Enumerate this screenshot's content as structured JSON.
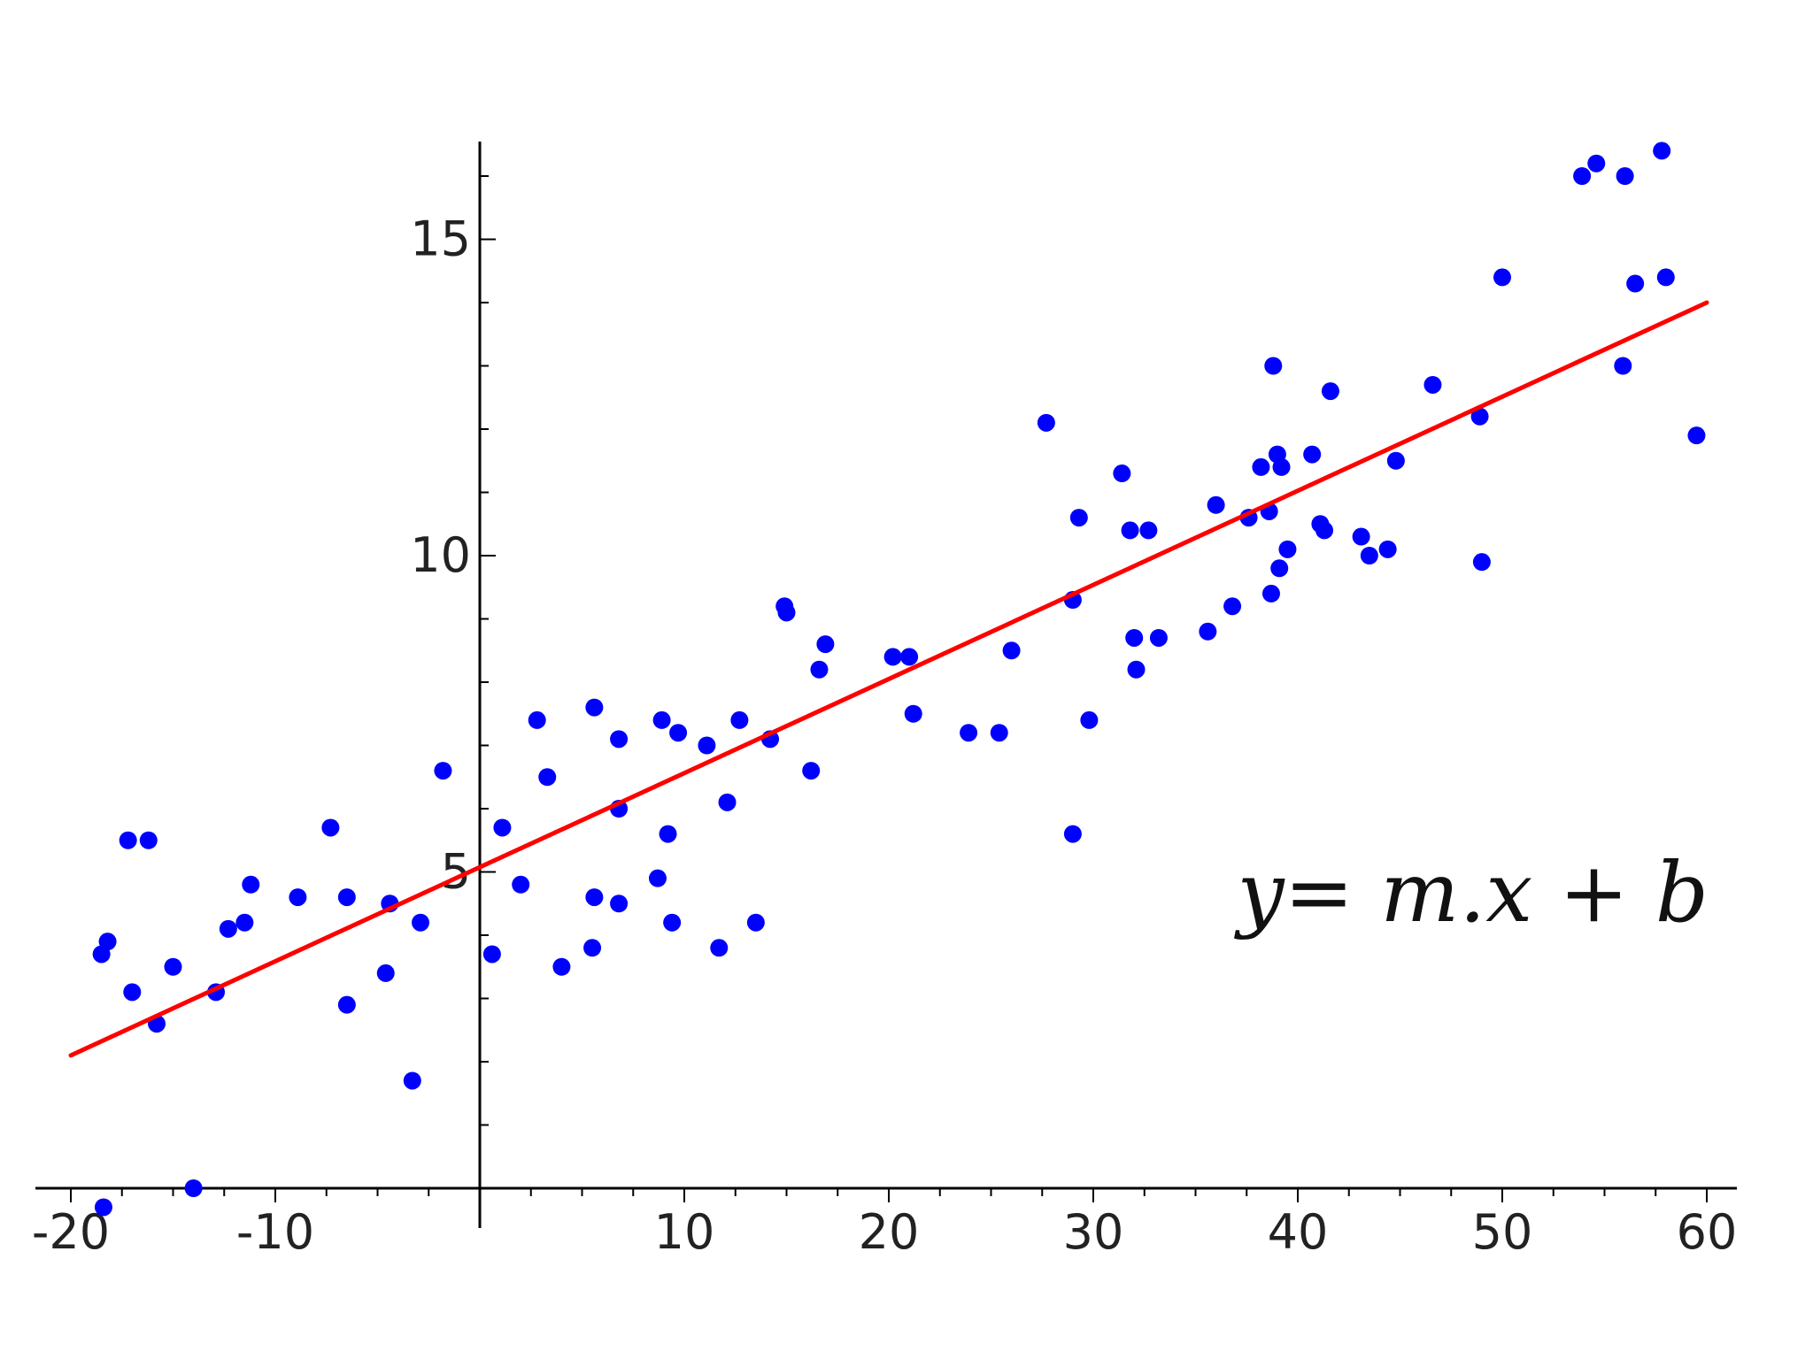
{
  "chart_data": {
    "type": "scatter",
    "title": "",
    "xlabel": "",
    "ylabel": "",
    "xlim": [
      -20,
      60
    ],
    "ylim": [
      0,
      16.5
    ],
    "x_ticks": [
      -20,
      -10,
      10,
      20,
      30,
      40,
      50,
      60
    ],
    "x_tick_labels": [
      "-20",
      "-10",
      "10",
      "20",
      "30",
      "40",
      "50",
      "60"
    ],
    "y_ticks": [
      5,
      10,
      15
    ],
    "y_tick_labels": [
      "5",
      "10",
      "15"
    ],
    "x_minor_step": 2.5,
    "y_minor_step": 1,
    "grid": false,
    "annotation": "y= m.x + b",
    "colors": {
      "points": "#0000ff",
      "fit_line": "#ff0000",
      "axes": "#000000"
    },
    "series": [
      {
        "type": "scatter",
        "points": [
          [
            -18.5,
            3.7
          ],
          [
            -18.2,
            3.9
          ],
          [
            -17.2,
            5.5
          ],
          [
            -16.2,
            5.5
          ],
          [
            -17.0,
            3.1
          ],
          [
            -15.8,
            2.6
          ],
          [
            -15.0,
            3.5
          ],
          [
            -18.4,
            -0.3
          ],
          [
            -14.0,
            0.0
          ],
          [
            -12.9,
            3.1
          ],
          [
            -12.3,
            4.1
          ],
          [
            -11.5,
            4.2
          ],
          [
            -11.2,
            4.8
          ],
          [
            -8.9,
            4.6
          ],
          [
            -7.3,
            5.7
          ],
          [
            -6.5,
            4.6
          ],
          [
            -6.5,
            2.9
          ],
          [
            -4.6,
            3.4
          ],
          [
            -4.4,
            4.5
          ],
          [
            -3.3,
            1.7
          ],
          [
            -2.9,
            4.2
          ],
          [
            -1.8,
            6.6
          ],
          [
            0.6,
            3.7
          ],
          [
            1.1,
            5.7
          ],
          [
            2.0,
            4.8
          ],
          [
            2.8,
            7.4
          ],
          [
            3.3,
            6.5
          ],
          [
            4.0,
            3.5
          ],
          [
            5.5,
            3.8
          ],
          [
            5.6,
            4.6
          ],
          [
            5.6,
            7.6
          ],
          [
            6.8,
            7.1
          ],
          [
            6.8,
            4.5
          ],
          [
            6.8,
            6.0
          ],
          [
            8.7,
            4.9
          ],
          [
            8.9,
            7.4
          ],
          [
            9.2,
            5.6
          ],
          [
            9.4,
            4.2
          ],
          [
            9.7,
            7.2
          ],
          [
            11.1,
            7.0
          ],
          [
            11.7,
            3.8
          ],
          [
            12.1,
            6.1
          ],
          [
            12.7,
            7.4
          ],
          [
            13.5,
            4.2
          ],
          [
            14.2,
            7.1
          ],
          [
            14.9,
            9.2
          ],
          [
            15.0,
            9.1
          ],
          [
            16.2,
            6.6
          ],
          [
            16.6,
            8.2
          ],
          [
            16.9,
            8.6
          ],
          [
            20.2,
            8.4
          ],
          [
            21.0,
            8.4
          ],
          [
            21.2,
            7.5
          ],
          [
            23.9,
            7.2
          ],
          [
            25.4,
            7.2
          ],
          [
            26.0,
            8.5
          ],
          [
            27.7,
            12.1
          ],
          [
            29.0,
            9.3
          ],
          [
            29.0,
            5.6
          ],
          [
            29.3,
            10.6
          ],
          [
            29.8,
            7.4
          ],
          [
            31.4,
            11.3
          ],
          [
            31.8,
            10.4
          ],
          [
            32.0,
            8.7
          ],
          [
            32.1,
            8.2
          ],
          [
            32.7,
            10.4
          ],
          [
            33.2,
            8.7
          ],
          [
            35.6,
            8.8
          ],
          [
            36.0,
            10.8
          ],
          [
            36.8,
            9.2
          ],
          [
            37.6,
            10.6
          ],
          [
            38.2,
            11.4
          ],
          [
            38.6,
            10.7
          ],
          [
            38.7,
            9.4
          ],
          [
            38.8,
            13.0
          ],
          [
            39.0,
            11.6
          ],
          [
            39.1,
            9.8
          ],
          [
            39.2,
            11.4
          ],
          [
            39.5,
            10.1
          ],
          [
            40.7,
            11.6
          ],
          [
            41.1,
            10.5
          ],
          [
            41.3,
            10.4
          ],
          [
            41.6,
            12.6
          ],
          [
            43.1,
            10.3
          ],
          [
            43.5,
            10.0
          ],
          [
            44.4,
            10.1
          ],
          [
            44.8,
            11.5
          ],
          [
            46.6,
            12.7
          ],
          [
            48.9,
            12.2
          ],
          [
            49.0,
            9.9
          ],
          [
            50.0,
            14.4
          ],
          [
            53.9,
            16.0
          ],
          [
            54.6,
            16.2
          ],
          [
            55.9,
            13.0
          ],
          [
            56.0,
            16.0
          ],
          [
            56.5,
            14.3
          ],
          [
            57.8,
            16.4
          ],
          [
            58.0,
            14.4
          ],
          [
            59.5,
            11.9
          ]
        ]
      },
      {
        "type": "line",
        "points": [
          [
            -20,
            2.1
          ],
          [
            60,
            14.0
          ]
        ]
      }
    ]
  }
}
